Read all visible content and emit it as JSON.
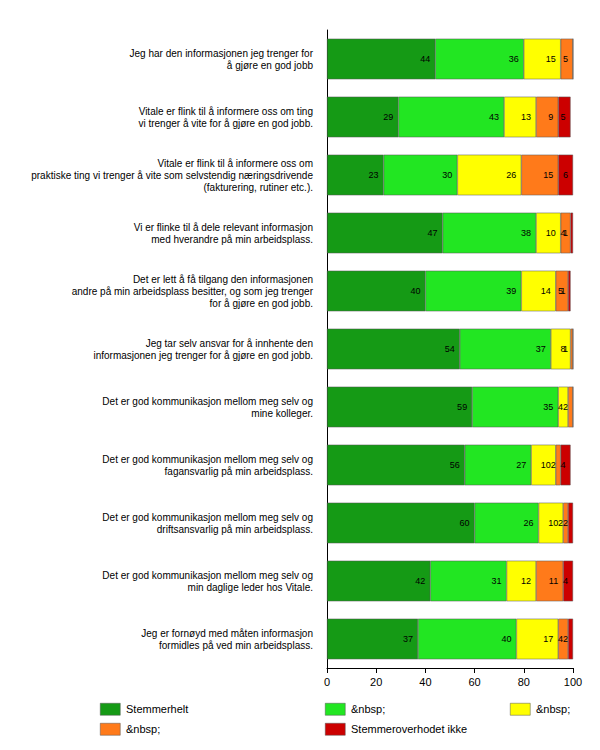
{
  "chart_data": {
    "type": "bar",
    "orientation": "horizontal",
    "stacked": true,
    "data_labels": true,
    "grid": false,
    "legend": "bottom",
    "categories": [
      "Jeg har den informasjonen jeg trenger for\nå gjøre en god jobb",
      "Vitale er flink til å informere oss om ting\nvi trenger å vite for å gjøre en god jobb.",
      "Vitale er flink til å informere oss om\npraktiske ting vi trenger å vite som selvstendig næringsdrivende\n(fakturering, rutiner etc.).",
      "Vi er flinke til å dele relevant informasjon\nmed hverandre på min arbeidsplass.",
      "Det er lett å få tilgang den informasjonen\nandre på min arbeidsplass besitter, og som jeg trenger\nfor å gjøre en god jobb.",
      "Jeg tar selv ansvar for å innhente den\ninformasjonen jeg trenger for å gjøre en god jobb.",
      "Det er god kommunikasjon mellom meg selv og\nmine kolleger.",
      "Det er god kommunikasjon mellom meg selv og\nfagansvarlig på min arbeidsplass.",
      "Det er god kommunikasjon mellom meg selv og\ndriftsansvarlig på min arbeidsplass.",
      "Det er god kommunikasjon mellom meg selv og\nmin daglige leder hos Vitale.",
      "Jeg er fornøyd med måten informasjon\nformidles på ved min arbeidsplass."
    ],
    "series": [
      {
        "name": "Stemmerhelt",
        "color": "#159a15",
        "values": [
          44,
          29,
          23,
          47,
          40,
          54,
          59,
          56,
          60,
          42,
          37
        ]
      },
      {
        "name": "&nbsp;",
        "color": "#22e622",
        "values": [
          36,
          43,
          30,
          38,
          39,
          37,
          35,
          27,
          26,
          31,
          40
        ]
      },
      {
        "name": "&nbsp;",
        "color": "#ffff00",
        "values": [
          15,
          13,
          26,
          10,
          14,
          8,
          4,
          10,
          10,
          12,
          17
        ]
      },
      {
        "name": "&nbsp;",
        "color": "#ff7a1a",
        "values": [
          5,
          9,
          15,
          4,
          5,
          1,
          2,
          2,
          2,
          11,
          4
        ]
      },
      {
        "name": "Stemmeroverhodet ikke",
        "color": "#cc0000",
        "values": [
          0,
          5,
          6,
          1,
          1,
          0,
          0,
          4,
          2,
          4,
          2
        ]
      }
    ],
    "xlim": [
      0,
      100
    ],
    "xticks": [
      0,
      20,
      40,
      60,
      80,
      100
    ]
  }
}
